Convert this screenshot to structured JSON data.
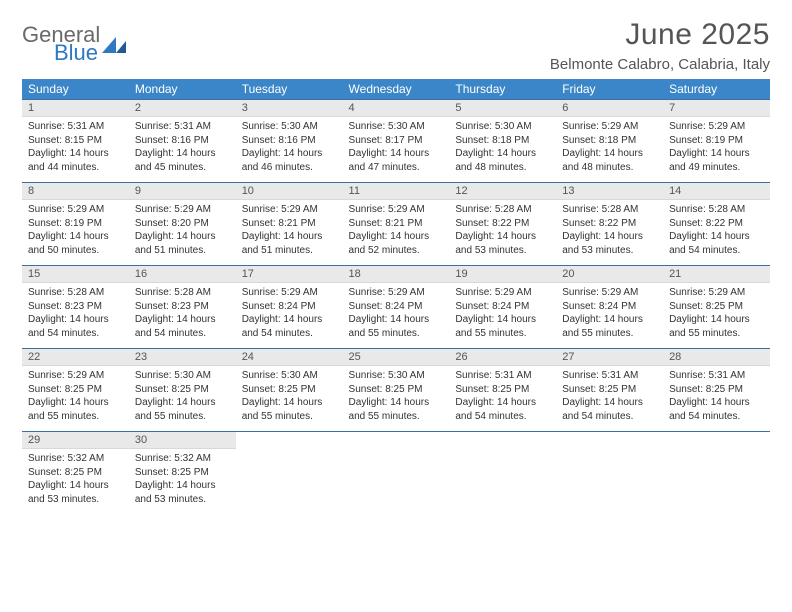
{
  "brand": {
    "word1": "General",
    "word2": "Blue",
    "word1_color": "#6a6a6a",
    "word2_color": "#2f78c4",
    "mark_color": "#2f78c4"
  },
  "title": {
    "month": "June 2025",
    "location": "Belmonte Calabro, Calabria, Italy"
  },
  "colors": {
    "header_bg": "#3b86c8",
    "header_text": "#ffffff",
    "daynum_bg": "#e9e9e9",
    "rule": "#3b6fa0",
    "text": "#333333"
  },
  "weekdays": [
    "Sunday",
    "Monday",
    "Tuesday",
    "Wednesday",
    "Thursday",
    "Friday",
    "Saturday"
  ],
  "weeks": [
    [
      {
        "n": "1",
        "sr": "5:31 AM",
        "ss": "8:15 PM",
        "dl": "14 hours and 44 minutes."
      },
      {
        "n": "2",
        "sr": "5:31 AM",
        "ss": "8:16 PM",
        "dl": "14 hours and 45 minutes."
      },
      {
        "n": "3",
        "sr": "5:30 AM",
        "ss": "8:16 PM",
        "dl": "14 hours and 46 minutes."
      },
      {
        "n": "4",
        "sr": "5:30 AM",
        "ss": "8:17 PM",
        "dl": "14 hours and 47 minutes."
      },
      {
        "n": "5",
        "sr": "5:30 AM",
        "ss": "8:18 PM",
        "dl": "14 hours and 48 minutes."
      },
      {
        "n": "6",
        "sr": "5:29 AM",
        "ss": "8:18 PM",
        "dl": "14 hours and 48 minutes."
      },
      {
        "n": "7",
        "sr": "5:29 AM",
        "ss": "8:19 PM",
        "dl": "14 hours and 49 minutes."
      }
    ],
    [
      {
        "n": "8",
        "sr": "5:29 AM",
        "ss": "8:19 PM",
        "dl": "14 hours and 50 minutes."
      },
      {
        "n": "9",
        "sr": "5:29 AM",
        "ss": "8:20 PM",
        "dl": "14 hours and 51 minutes."
      },
      {
        "n": "10",
        "sr": "5:29 AM",
        "ss": "8:21 PM",
        "dl": "14 hours and 51 minutes."
      },
      {
        "n": "11",
        "sr": "5:29 AM",
        "ss": "8:21 PM",
        "dl": "14 hours and 52 minutes."
      },
      {
        "n": "12",
        "sr": "5:28 AM",
        "ss": "8:22 PM",
        "dl": "14 hours and 53 minutes."
      },
      {
        "n": "13",
        "sr": "5:28 AM",
        "ss": "8:22 PM",
        "dl": "14 hours and 53 minutes."
      },
      {
        "n": "14",
        "sr": "5:28 AM",
        "ss": "8:22 PM",
        "dl": "14 hours and 54 minutes."
      }
    ],
    [
      {
        "n": "15",
        "sr": "5:28 AM",
        "ss": "8:23 PM",
        "dl": "14 hours and 54 minutes."
      },
      {
        "n": "16",
        "sr": "5:28 AM",
        "ss": "8:23 PM",
        "dl": "14 hours and 54 minutes."
      },
      {
        "n": "17",
        "sr": "5:29 AM",
        "ss": "8:24 PM",
        "dl": "14 hours and 54 minutes."
      },
      {
        "n": "18",
        "sr": "5:29 AM",
        "ss": "8:24 PM",
        "dl": "14 hours and 55 minutes."
      },
      {
        "n": "19",
        "sr": "5:29 AM",
        "ss": "8:24 PM",
        "dl": "14 hours and 55 minutes."
      },
      {
        "n": "20",
        "sr": "5:29 AM",
        "ss": "8:24 PM",
        "dl": "14 hours and 55 minutes."
      },
      {
        "n": "21",
        "sr": "5:29 AM",
        "ss": "8:25 PM",
        "dl": "14 hours and 55 minutes."
      }
    ],
    [
      {
        "n": "22",
        "sr": "5:29 AM",
        "ss": "8:25 PM",
        "dl": "14 hours and 55 minutes."
      },
      {
        "n": "23",
        "sr": "5:30 AM",
        "ss": "8:25 PM",
        "dl": "14 hours and 55 minutes."
      },
      {
        "n": "24",
        "sr": "5:30 AM",
        "ss": "8:25 PM",
        "dl": "14 hours and 55 minutes."
      },
      {
        "n": "25",
        "sr": "5:30 AM",
        "ss": "8:25 PM",
        "dl": "14 hours and 55 minutes."
      },
      {
        "n": "26",
        "sr": "5:31 AM",
        "ss": "8:25 PM",
        "dl": "14 hours and 54 minutes."
      },
      {
        "n": "27",
        "sr": "5:31 AM",
        "ss": "8:25 PM",
        "dl": "14 hours and 54 minutes."
      },
      {
        "n": "28",
        "sr": "5:31 AM",
        "ss": "8:25 PM",
        "dl": "14 hours and 54 minutes."
      }
    ],
    [
      {
        "n": "29",
        "sr": "5:32 AM",
        "ss": "8:25 PM",
        "dl": "14 hours and 53 minutes."
      },
      {
        "n": "30",
        "sr": "5:32 AM",
        "ss": "8:25 PM",
        "dl": "14 hours and 53 minutes."
      },
      null,
      null,
      null,
      null,
      null
    ]
  ],
  "labels": {
    "sunrise": "Sunrise:",
    "sunset": "Sunset:",
    "daylight": "Daylight:"
  }
}
